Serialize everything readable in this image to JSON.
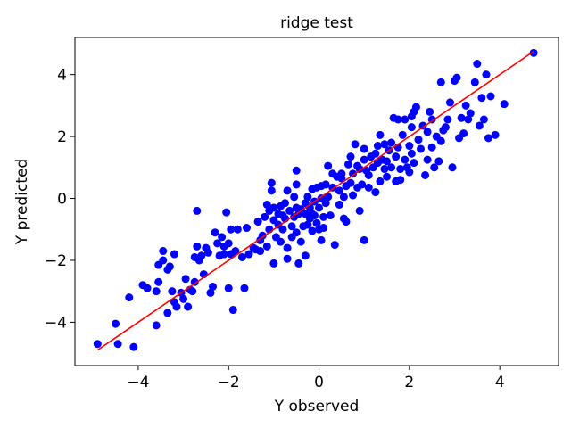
{
  "chart_data": {
    "type": "scatter",
    "title": "ridge test",
    "xlabel": "Y observed",
    "ylabel": "Y predicted",
    "xlim": [
      -5.4,
      5.3
    ],
    "ylim": [
      -5.4,
      5.2
    ],
    "xticks": [
      -4,
      -2,
      0,
      2,
      4
    ],
    "yticks": [
      -4,
      -2,
      0,
      2,
      4
    ],
    "xtick_labels": [
      "−4",
      "−2",
      "0",
      "2",
      "4"
    ],
    "ytick_labels": [
      "−4",
      "−2",
      "0",
      "2",
      "4"
    ],
    "grid": false,
    "series": [
      {
        "type": "scatter",
        "color": "#0000ff",
        "points": [
          [
            -4.9,
            -4.7
          ],
          [
            -4.5,
            -4.05
          ],
          [
            -4.45,
            -4.7
          ],
          [
            -4.2,
            -3.2
          ],
          [
            -4.1,
            -4.8
          ],
          [
            -3.9,
            -2.8
          ],
          [
            -3.8,
            -2.9
          ],
          [
            -3.6,
            -4.1
          ],
          [
            -3.6,
            -3.0
          ],
          [
            -3.55,
            -2.7
          ],
          [
            -3.55,
            -2.15
          ],
          [
            -3.45,
            -2.0
          ],
          [
            -3.45,
            -1.7
          ],
          [
            -3.35,
            -2.3
          ],
          [
            -3.35,
            -3.7
          ],
          [
            -3.3,
            -2.2
          ],
          [
            -3.25,
            -3.0
          ],
          [
            -3.2,
            -3.35
          ],
          [
            -3.2,
            -1.8
          ],
          [
            -3.15,
            -3.5
          ],
          [
            -3.05,
            -3.05
          ],
          [
            -3.0,
            -3.25
          ],
          [
            -2.95,
            -2.6
          ],
          [
            -2.9,
            -3.5
          ],
          [
            -2.85,
            -2.95
          ],
          [
            -2.8,
            -3.0
          ],
          [
            -2.75,
            -2.7
          ],
          [
            -2.75,
            -1.9
          ],
          [
            -2.7,
            -1.55
          ],
          [
            -2.7,
            -0.4
          ],
          [
            -2.65,
            -2.0
          ],
          [
            -2.6,
            -1.85
          ],
          [
            -2.55,
            -2.45
          ],
          [
            -2.5,
            -1.6
          ],
          [
            -2.45,
            -1.75
          ],
          [
            -2.4,
            -3.05
          ],
          [
            -2.35,
            -2.85
          ],
          [
            -2.3,
            -1.1
          ],
          [
            -2.25,
            -1.45
          ],
          [
            -2.2,
            -1.85
          ],
          [
            -2.15,
            -1.25
          ],
          [
            -2.1,
            -1.8
          ],
          [
            -2.1,
            -1.55
          ],
          [
            -2.05,
            -0.45
          ],
          [
            -2.0,
            -2.9
          ],
          [
            -2.0,
            -1.45
          ],
          [
            -1.95,
            -1.0
          ],
          [
            -1.95,
            -1.8
          ],
          [
            -1.9,
            -3.6
          ],
          [
            -1.85,
            -1.7
          ],
          [
            -1.8,
            -1.0
          ],
          [
            -1.7,
            -1.9
          ],
          [
            -1.65,
            -2.9
          ],
          [
            -1.6,
            -0.95
          ],
          [
            -1.55,
            -1.8
          ],
          [
            -1.45,
            -1.6
          ],
          [
            -1.4,
            -1.65
          ],
          [
            -1.35,
            -0.75
          ],
          [
            -1.3,
            -1.35
          ],
          [
            -1.3,
            -1.7
          ],
          [
            -1.25,
            -1.2
          ],
          [
            -1.2,
            -0.6
          ],
          [
            -1.15,
            -0.2
          ],
          [
            -1.15,
            -1.55
          ],
          [
            -1.1,
            -0.4
          ],
          [
            -1.1,
            -1.0
          ],
          [
            -1.05,
            0.5
          ],
          [
            -1.05,
            0.25
          ],
          [
            -1.0,
            -0.7
          ],
          [
            -1.0,
            -0.3
          ],
          [
            -1.0,
            -2.1
          ],
          [
            -0.95,
            -1.25
          ],
          [
            -0.9,
            -0.85
          ],
          [
            -0.9,
            -0.5
          ],
          [
            -0.85,
            -0.25
          ],
          [
            -0.85,
            -1.4
          ],
          [
            -0.8,
            -0.55
          ],
          [
            -0.8,
            -1.0
          ],
          [
            -0.75,
            -0.65
          ],
          [
            -0.75,
            -0.15
          ],
          [
            -0.7,
            0.25
          ],
          [
            -0.7,
            -1.6
          ],
          [
            -0.7,
            -1.95
          ],
          [
            -0.65,
            -0.4
          ],
          [
            -0.6,
            -0.9
          ],
          [
            -0.6,
            -1.25
          ],
          [
            -0.55,
            0.05
          ],
          [
            -0.55,
            -0.6
          ],
          [
            -0.5,
            -0.3
          ],
          [
            -0.5,
            -1.1
          ],
          [
            -0.5,
            0.45
          ],
          [
            -0.5,
            0.9
          ],
          [
            -0.45,
            -0.5
          ],
          [
            -0.45,
            -2.1
          ],
          [
            -0.4,
            -0.35
          ],
          [
            -0.4,
            -1.4
          ],
          [
            -0.35,
            -0.9
          ],
          [
            -0.3,
            -0.5
          ],
          [
            -0.3,
            -0.15
          ],
          [
            -0.3,
            -1.85
          ],
          [
            -0.25,
            0.05
          ],
          [
            -0.25,
            -0.85
          ],
          [
            -0.2,
            -0.3
          ],
          [
            -0.2,
            -0.65
          ],
          [
            -0.15,
            0.3
          ],
          [
            -0.15,
            -0.5
          ],
          [
            -0.15,
            -1.05
          ],
          [
            -0.1,
            -0.1
          ],
          [
            -0.1,
            -0.55
          ],
          [
            -0.05,
            0.35
          ],
          [
            -0.05,
            -0.8
          ],
          [
            0.0,
            -0.3
          ],
          [
            0.0,
            -1.0
          ],
          [
            0.05,
            0.4
          ],
          [
            0.05,
            0.0
          ],
          [
            0.05,
            -1.35
          ],
          [
            0.1,
            -0.6
          ],
          [
            0.1,
            -0.95
          ],
          [
            0.15,
            0.45
          ],
          [
            0.15,
            -0.15
          ],
          [
            0.2,
            0.05
          ],
          [
            0.2,
            1.05
          ],
          [
            0.25,
            -0.55
          ],
          [
            0.3,
            0.35
          ],
          [
            0.3,
            0.8
          ],
          [
            0.35,
            -1.5
          ],
          [
            0.4,
            0.7
          ],
          [
            0.45,
            0.25
          ],
          [
            0.45,
            -0.2
          ],
          [
            0.5,
            0.65
          ],
          [
            0.5,
            0.8
          ],
          [
            0.55,
            0.05
          ],
          [
            0.55,
            -0.65
          ],
          [
            0.6,
            0.4
          ],
          [
            0.6,
            -0.75
          ],
          [
            0.65,
            1.1
          ],
          [
            0.7,
            0.5
          ],
          [
            0.7,
            1.35
          ],
          [
            0.75,
            0.8
          ],
          [
            0.75,
            0.1
          ],
          [
            0.8,
            1.75
          ],
          [
            0.85,
            1.05
          ],
          [
            0.85,
            0.35
          ],
          [
            0.9,
            -0.4
          ],
          [
            0.9,
            0.95
          ],
          [
            0.95,
            0.45
          ],
          [
            1.0,
            1.25
          ],
          [
            1.0,
            1.6
          ],
          [
            1.0,
            -1.35
          ],
          [
            1.05,
            0.9
          ],
          [
            1.1,
            0.35
          ],
          [
            1.1,
            0.75
          ],
          [
            1.15,
            1.35
          ],
          [
            1.2,
            1.0
          ],
          [
            1.25,
            1.45
          ],
          [
            1.25,
            0.2
          ],
          [
            1.3,
            1.15
          ],
          [
            1.3,
            1.7
          ],
          [
            1.35,
            0.55
          ],
          [
            1.35,
            2.05
          ],
          [
            1.4,
            1.25
          ],
          [
            1.45,
            0.95
          ],
          [
            1.45,
            1.75
          ],
          [
            1.5,
            1.2
          ],
          [
            1.5,
            0.7
          ],
          [
            1.55,
            1.55
          ],
          [
            1.6,
            1.8
          ],
          [
            1.6,
            1.0
          ],
          [
            1.65,
            2.6
          ],
          [
            1.7,
            1.35
          ],
          [
            1.7,
            0.55
          ],
          [
            1.75,
            2.55
          ],
          [
            1.75,
            1.65
          ],
          [
            1.8,
            0.95
          ],
          [
            1.8,
            0.6
          ],
          [
            1.85,
            2.05
          ],
          [
            1.9,
            1.25
          ],
          [
            1.9,
            2.55
          ],
          [
            1.95,
            1.0
          ],
          [
            2.0,
            0.85
          ],
          [
            2.0,
            1.7
          ],
          [
            2.05,
            2.3
          ],
          [
            2.05,
            1.45
          ],
          [
            2.1,
            2.8
          ],
          [
            2.1,
            1.15
          ],
          [
            2.15,
            2.95
          ],
          [
            2.2,
            1.9
          ],
          [
            2.25,
            1.6
          ],
          [
            2.3,
            2.35
          ],
          [
            2.35,
            0.75
          ],
          [
            2.4,
            2.15
          ],
          [
            2.4,
            1.25
          ],
          [
            2.45,
            2.8
          ],
          [
            2.5,
            2.55
          ],
          [
            2.5,
            1.65
          ],
          [
            2.55,
            1.0
          ],
          [
            2.6,
            2.0
          ],
          [
            2.65,
            1.2
          ],
          [
            2.7,
            3.75
          ],
          [
            2.7,
            1.85
          ],
          [
            2.75,
            2.2
          ],
          [
            2.8,
            2.3
          ],
          [
            2.85,
            2.55
          ],
          [
            2.9,
            3.1
          ],
          [
            2.95,
            1.0
          ],
          [
            3.0,
            3.8
          ],
          [
            3.05,
            3.9
          ],
          [
            3.1,
            1.95
          ],
          [
            3.15,
            2.6
          ],
          [
            3.2,
            2.1
          ],
          [
            3.25,
            3.0
          ],
          [
            3.3,
            2.55
          ],
          [
            3.35,
            2.75
          ],
          [
            3.45,
            3.75
          ],
          [
            3.5,
            4.35
          ],
          [
            3.55,
            2.35
          ],
          [
            3.6,
            3.25
          ],
          [
            3.7,
            4.0
          ],
          [
            3.75,
            1.95
          ],
          [
            3.8,
            3.3
          ],
          [
            3.9,
            2.05
          ],
          [
            4.1,
            3.05
          ],
          [
            4.75,
            4.7
          ],
          [
            3.65,
            2.55
          ],
          [
            2.05,
            2.65
          ]
        ]
      },
      {
        "type": "line",
        "color": "#ff0000",
        "points": [
          [
            -4.9,
            -4.9
          ],
          [
            4.75,
            4.75
          ]
        ]
      }
    ]
  }
}
